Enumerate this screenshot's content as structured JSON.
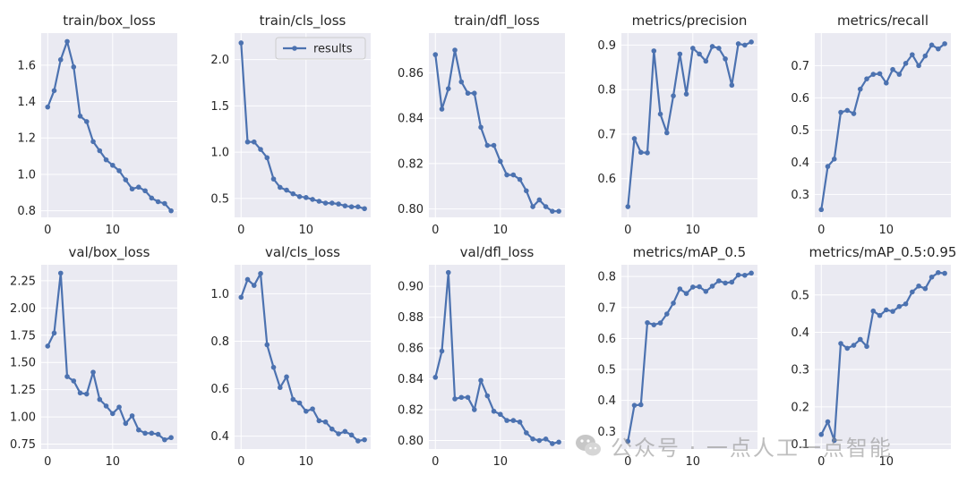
{
  "colors": {
    "series": "#4c72b0"
  },
  "watermark": {
    "text": "公众号 · 一点人工一点智能",
    "icon": "wechat-logo-icon"
  },
  "chart_data": [
    {
      "type": "line",
      "title": "train/box_loss",
      "x": [
        0,
        1,
        2,
        3,
        4,
        5,
        6,
        7,
        8,
        9,
        10,
        11,
        12,
        13,
        14,
        15,
        16,
        17,
        18,
        19
      ],
      "series": [
        {
          "name": "results",
          "values": [
            1.37,
            1.46,
            1.63,
            1.73,
            1.59,
            1.32,
            1.29,
            1.18,
            1.13,
            1.08,
            1.05,
            1.02,
            0.97,
            0.92,
            0.93,
            0.91,
            0.87,
            0.85,
            0.84,
            0.8
          ]
        }
      ],
      "xlim": [
        -1.0,
        19.95
      ],
      "ylim": [
        0.764,
        1.776
      ],
      "xticks": [
        0,
        10
      ],
      "xtick_labels": [
        "0",
        "10"
      ],
      "yticks": [
        0.8,
        1.0,
        1.2,
        1.4,
        1.6
      ],
      "ytick_labels": [
        "0.8",
        "1.0",
        "1.2",
        "1.4",
        "1.6"
      ]
    },
    {
      "type": "line",
      "title": "train/cls_loss",
      "x": [
        0,
        1,
        2,
        3,
        4,
        5,
        6,
        7,
        8,
        9,
        10,
        11,
        12,
        13,
        14,
        15,
        16,
        17,
        18,
        19
      ],
      "series": [
        {
          "name": "results",
          "values": [
            2.18,
            1.11,
            1.11,
            1.03,
            0.94,
            0.71,
            0.62,
            0.59,
            0.55,
            0.52,
            0.51,
            0.49,
            0.47,
            0.45,
            0.45,
            0.44,
            0.42,
            0.41,
            0.41,
            0.39
          ]
        }
      ],
      "xlim": [
        -1.0,
        19.95
      ],
      "ylim": [
        0.296,
        2.286
      ],
      "xticks": [
        0,
        10
      ],
      "xtick_labels": [
        "0",
        "10"
      ],
      "yticks": [
        0.5,
        1.0,
        1.5,
        2.0
      ],
      "ytick_labels": [
        "0.5",
        "1.0",
        "1.5",
        "2.0"
      ],
      "legend": {
        "label": "results",
        "placement": "top-right"
      }
    },
    {
      "type": "line",
      "title": "train/dfl_loss",
      "x": [
        0,
        1,
        2,
        3,
        4,
        5,
        6,
        7,
        8,
        9,
        10,
        11,
        12,
        13,
        14,
        15,
        16,
        17,
        18,
        19
      ],
      "series": [
        {
          "name": "results",
          "values": [
            0.868,
            0.844,
            0.853,
            0.87,
            0.856,
            0.851,
            0.851,
            0.836,
            0.828,
            0.828,
            0.821,
            0.815,
            0.815,
            0.813,
            0.808,
            0.801,
            0.804,
            0.801,
            0.799,
            0.799
          ]
        }
      ],
      "xlim": [
        -1.0,
        19.95
      ],
      "ylim": [
        0.7963,
        0.8775
      ],
      "xticks": [
        0,
        10
      ],
      "xtick_labels": [
        "0",
        "10"
      ],
      "yticks": [
        0.8,
        0.82,
        0.84,
        0.86
      ],
      "ytick_labels": [
        "0.80",
        "0.82",
        "0.84",
        "0.86"
      ]
    },
    {
      "type": "line",
      "title": "metrics/precision",
      "x": [
        0,
        1,
        2,
        3,
        4,
        5,
        6,
        7,
        8,
        9,
        10,
        11,
        12,
        13,
        14,
        15,
        16,
        17,
        18,
        19
      ],
      "series": [
        {
          "name": "results",
          "values": [
            0.537,
            0.69,
            0.659,
            0.658,
            0.887,
            0.745,
            0.703,
            0.786,
            0.88,
            0.79,
            0.893,
            0.88,
            0.864,
            0.897,
            0.893,
            0.869,
            0.81,
            0.903,
            0.9,
            0.907
          ]
        }
      ],
      "xlim": [
        -1.0,
        19.95
      ],
      "ylim": [
        0.513,
        0.927
      ],
      "xticks": [
        0,
        10
      ],
      "xtick_labels": [
        "0",
        "10"
      ],
      "yticks": [
        0.6,
        0.7,
        0.8,
        0.9
      ],
      "ytick_labels": [
        "0.6",
        "0.7",
        "0.8",
        "0.9"
      ]
    },
    {
      "type": "line",
      "title": "metrics/recall",
      "x": [
        0,
        1,
        2,
        3,
        4,
        5,
        6,
        7,
        8,
        9,
        10,
        11,
        12,
        13,
        14,
        15,
        16,
        17,
        18,
        19
      ],
      "series": [
        {
          "name": "results",
          "values": [
            0.253,
            0.387,
            0.41,
            0.555,
            0.561,
            0.551,
            0.627,
            0.659,
            0.673,
            0.675,
            0.646,
            0.688,
            0.673,
            0.707,
            0.734,
            0.7,
            0.73,
            0.764,
            0.752,
            0.768
          ]
        }
      ],
      "xlim": [
        -1.0,
        19.95
      ],
      "ylim": [
        0.229,
        0.801
      ],
      "xticks": [
        0,
        10
      ],
      "xtick_labels": [
        "0",
        "10"
      ],
      "yticks": [
        0.3,
        0.4,
        0.5,
        0.6,
        0.7
      ],
      "ytick_labels": [
        "0.3",
        "0.4",
        "0.5",
        "0.6",
        "0.7"
      ]
    },
    {
      "type": "line",
      "title": "val/box_loss",
      "x": [
        0,
        1,
        2,
        3,
        4,
        5,
        6,
        7,
        8,
        9,
        10,
        11,
        12,
        13,
        14,
        15,
        16,
        17,
        18,
        19
      ],
      "series": [
        {
          "name": "results",
          "values": [
            1.65,
            1.77,
            2.32,
            1.37,
            1.33,
            1.22,
            1.21,
            1.41,
            1.16,
            1.1,
            1.03,
            1.09,
            0.94,
            1.01,
            0.88,
            0.85,
            0.85,
            0.84,
            0.79,
            0.81
          ]
        }
      ],
      "xlim": [
        -1.0,
        19.95
      ],
      "ylim": [
        0.705,
        2.397
      ],
      "xticks": [
        0,
        10
      ],
      "xtick_labels": [
        "0",
        "10"
      ],
      "yticks": [
        0.75,
        1.0,
        1.25,
        1.5,
        1.75,
        2.0,
        2.25
      ],
      "ytick_labels": [
        "0.75",
        "1.00",
        "1.25",
        "1.50",
        "1.75",
        "2.00",
        "2.25"
      ]
    },
    {
      "type": "line",
      "title": "val/cls_loss",
      "x": [
        0,
        1,
        2,
        3,
        4,
        5,
        6,
        7,
        8,
        9,
        10,
        11,
        12,
        13,
        14,
        15,
        16,
        17,
        18,
        19
      ],
      "series": [
        {
          "name": "results",
          "values": [
            0.985,
            1.06,
            1.035,
            1.085,
            0.785,
            0.69,
            0.605,
            0.65,
            0.555,
            0.54,
            0.505,
            0.515,
            0.465,
            0.46,
            0.43,
            0.41,
            0.42,
            0.405,
            0.38,
            0.385
          ]
        }
      ],
      "xlim": [
        -1.0,
        19.95
      ],
      "ylim": [
        0.346,
        1.122
      ],
      "xticks": [
        0,
        10
      ],
      "xtick_labels": [
        "0",
        "10"
      ],
      "yticks": [
        0.4,
        0.6,
        0.8,
        1.0
      ],
      "ytick_labels": [
        "0.4",
        "0.6",
        "0.8",
        "1.0"
      ]
    },
    {
      "type": "line",
      "title": "val/dfl_loss",
      "x": [
        0,
        1,
        2,
        3,
        4,
        5,
        6,
        7,
        8,
        9,
        10,
        11,
        12,
        13,
        14,
        15,
        16,
        17,
        18,
        19
      ],
      "series": [
        {
          "name": "results",
          "values": [
            0.841,
            0.858,
            0.909,
            0.827,
            0.828,
            0.828,
            0.82,
            0.839,
            0.829,
            0.819,
            0.817,
            0.813,
            0.813,
            0.812,
            0.805,
            0.801,
            0.8,
            0.801,
            0.798,
            0.799
          ]
        }
      ],
      "xlim": [
        -1.0,
        19.95
      ],
      "ylim": [
        0.7945,
        0.914
      ],
      "xticks": [
        0,
        10
      ],
      "xtick_labels": [
        "0",
        "10"
      ],
      "yticks": [
        0.8,
        0.82,
        0.84,
        0.86,
        0.88,
        0.9
      ],
      "ytick_labels": [
        "0.80",
        "0.82",
        "0.84",
        "0.86",
        "0.88",
        "0.90"
      ]
    },
    {
      "type": "line",
      "title": "metrics/mAP_0.5",
      "x": [
        0,
        1,
        2,
        3,
        4,
        5,
        6,
        7,
        8,
        9,
        10,
        11,
        12,
        13,
        14,
        15,
        16,
        17,
        18,
        19
      ],
      "series": [
        {
          "name": "results",
          "values": [
            0.268,
            0.384,
            0.386,
            0.651,
            0.644,
            0.65,
            0.679,
            0.714,
            0.76,
            0.745,
            0.766,
            0.767,
            0.752,
            0.769,
            0.786,
            0.779,
            0.782,
            0.805,
            0.804,
            0.811
          ]
        }
      ],
      "xlim": [
        -1.0,
        19.95
      ],
      "ylim": [
        0.243,
        0.838
      ],
      "xticks": [
        0,
        10
      ],
      "xtick_labels": [
        "0",
        "10"
      ],
      "yticks": [
        0.3,
        0.4,
        0.5,
        0.6,
        0.7,
        0.8
      ],
      "ytick_labels": [
        "0.3",
        "0.4",
        "0.5",
        "0.6",
        "0.7",
        "0.8"
      ]
    },
    {
      "type": "line",
      "title": "metrics/mAP_0.5:0.95",
      "x": [
        0,
        1,
        2,
        3,
        4,
        5,
        6,
        7,
        8,
        9,
        10,
        11,
        12,
        13,
        14,
        15,
        16,
        17,
        18,
        19
      ],
      "series": [
        {
          "name": "results",
          "values": [
            0.126,
            0.16,
            0.11,
            0.37,
            0.357,
            0.365,
            0.381,
            0.362,
            0.457,
            0.445,
            0.46,
            0.456,
            0.469,
            0.476,
            0.508,
            0.524,
            0.517,
            0.548,
            0.56,
            0.558
          ]
        }
      ],
      "xlim": [
        -1.0,
        19.95
      ],
      "ylim": [
        0.087,
        0.581
      ],
      "xticks": [
        0,
        10
      ],
      "xtick_labels": [
        "0",
        "10"
      ],
      "yticks": [
        0.1,
        0.2,
        0.3,
        0.4,
        0.5
      ],
      "ytick_labels": [
        "0.1",
        "0.2",
        "0.3",
        "0.4",
        "0.5"
      ]
    }
  ]
}
